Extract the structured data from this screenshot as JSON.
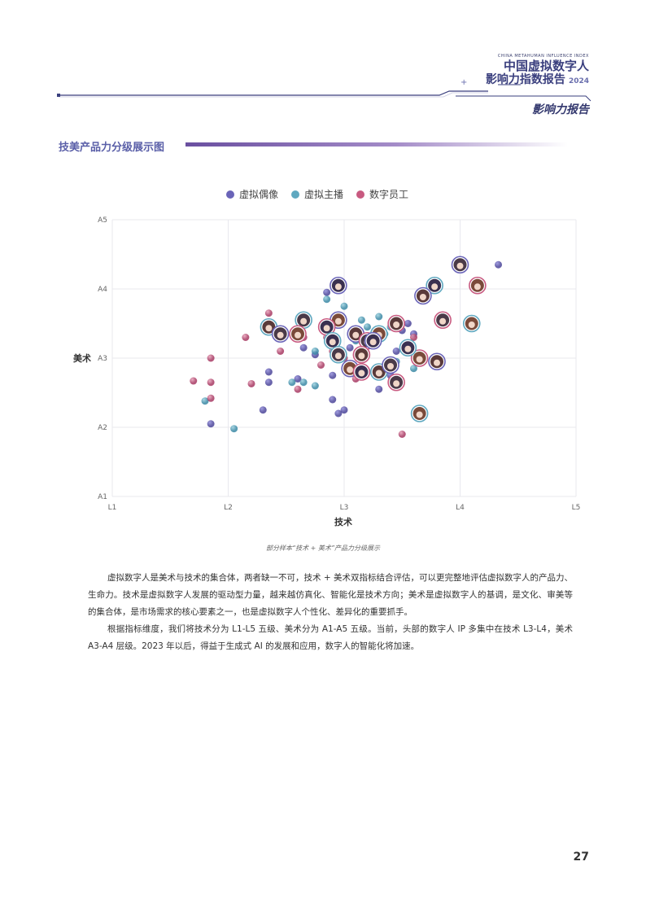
{
  "header": {
    "english": "CHINA METAHUMAN INFLUENCE INDEX",
    "title_line1": "中国虚拟数字人",
    "title_line2": "影响力指数报告",
    "year": "2024",
    "subtitle": "影响力报告"
  },
  "section": {
    "title": "技美产品力分级展示图"
  },
  "chart_data": {
    "type": "scatter",
    "xlabel": "技术",
    "ylabel": "美术",
    "x_ticks": [
      "L1",
      "L2",
      "L3",
      "L4",
      "L5"
    ],
    "y_ticks": [
      "A1",
      "A2",
      "A3",
      "A4",
      "A5"
    ],
    "xlim": [
      1,
      5
    ],
    "ylim": [
      1,
      5
    ],
    "grid": true,
    "legend_position": "top",
    "series": [
      {
        "name": "虚拟偶像",
        "color": "#6a64b8",
        "points": [
          [
            1.85,
            2.05
          ],
          [
            2.3,
            2.25
          ],
          [
            2.35,
            2.8
          ],
          [
            2.35,
            2.65
          ],
          [
            2.6,
            2.7
          ],
          [
            2.65,
            3.15
          ],
          [
            2.75,
            3.05
          ],
          [
            2.85,
            3.4
          ],
          [
            2.9,
            2.75
          ],
          [
            2.9,
            2.4
          ],
          [
            2.95,
            2.2
          ],
          [
            3.0,
            2.25
          ],
          [
            3.05,
            3.15
          ],
          [
            3.15,
            2.8
          ],
          [
            3.25,
            3.2
          ],
          [
            3.3,
            2.55
          ],
          [
            3.4,
            2.75
          ],
          [
            3.55,
            3.5
          ],
          [
            3.6,
            3.35
          ],
          [
            4.33,
            4.35
          ],
          [
            2.85,
            3.95
          ],
          [
            3.2,
            3.25
          ],
          [
            3.45,
            3.1
          ],
          [
            3.5,
            3.4
          ]
        ]
      },
      {
        "name": "虚拟主播",
        "color": "#5fa8c0",
        "points": [
          [
            1.8,
            2.38
          ],
          [
            2.05,
            1.98
          ],
          [
            2.55,
            2.65
          ],
          [
            2.65,
            2.65
          ],
          [
            2.75,
            3.1
          ],
          [
            2.85,
            3.85
          ],
          [
            3.0,
            3.75
          ],
          [
            3.1,
            3.25
          ],
          [
            3.15,
            3.55
          ],
          [
            3.2,
            3.45
          ],
          [
            3.35,
            3.35
          ],
          [
            3.4,
            3.45
          ],
          [
            3.45,
            2.95
          ],
          [
            3.6,
            2.85
          ],
          [
            2.75,
            2.6
          ],
          [
            3.3,
            3.6
          ]
        ]
      },
      {
        "name": "数字员工",
        "color": "#c85a80",
        "points": [
          [
            1.7,
            2.67
          ],
          [
            1.85,
            2.65
          ],
          [
            1.85,
            2.42
          ],
          [
            1.85,
            3.0
          ],
          [
            2.15,
            3.3
          ],
          [
            2.2,
            2.63
          ],
          [
            2.35,
            3.65
          ],
          [
            2.45,
            3.1
          ],
          [
            2.6,
            2.55
          ],
          [
            2.65,
            3.3
          ],
          [
            2.8,
            2.9
          ],
          [
            2.85,
            3.3
          ],
          [
            2.9,
            3.1
          ],
          [
            3.0,
            3.0
          ],
          [
            3.1,
            2.7
          ],
          [
            3.45,
            2.6
          ],
          [
            3.5,
            1.9
          ],
          [
            3.6,
            3.3
          ]
        ]
      }
    ],
    "avatars": [
      [
        4.0,
        4.35
      ],
      [
        4.15,
        4.05
      ],
      [
        3.78,
        4.05
      ],
      [
        3.68,
        3.9
      ],
      [
        3.85,
        3.55
      ],
      [
        4.1,
        3.5
      ],
      [
        2.95,
        4.05
      ],
      [
        3.45,
        3.5
      ],
      [
        2.65,
        3.55
      ],
      [
        2.95,
        3.55
      ],
      [
        2.85,
        3.45
      ],
      [
        2.35,
        3.45
      ],
      [
        2.45,
        3.35
      ],
      [
        2.6,
        3.35
      ],
      [
        2.9,
        3.25
      ],
      [
        3.1,
        3.35
      ],
      [
        3.2,
        3.25
      ],
      [
        3.3,
        3.35
      ],
      [
        3.25,
        3.25
      ],
      [
        3.15,
        3.05
      ],
      [
        2.95,
        3.05
      ],
      [
        3.05,
        2.85
      ],
      [
        3.15,
        2.8
      ],
      [
        3.3,
        2.8
      ],
      [
        3.4,
        2.9
      ],
      [
        3.65,
        3.0
      ],
      [
        3.55,
        3.15
      ],
      [
        3.8,
        2.95
      ],
      [
        3.45,
        2.65
      ],
      [
        3.65,
        2.2
      ]
    ]
  },
  "caption": "部分样本“技术 + 美术”产品力分级展示",
  "paragraphs": [
    "虚拟数字人是美术与技术的集合体，两者缺一不可，技术 + 美术双指标结合评估，可以更完整地评估虚拟数字人的产品力、生命力。技术是虚拟数字人发展的驱动型力量，越来越仿真化、智能化是技术方向；美术是虚拟数字人的基调，是文化、审美等的集合体，是市场需求的核心要素之一，也是虚拟数字人个性化、差异化的重要抓手。",
    "根据指标维度，我们将技术分为 L1-L5 五级、美术分为 A1-A5 五级。当前，头部的数字人 IP 多集中在技术 L3-L4，美术 A3-A4 层级。2023 年以后，得益于生成式 AI 的发展和应用，数字人的智能化将加速。"
  ],
  "page_number": "27"
}
